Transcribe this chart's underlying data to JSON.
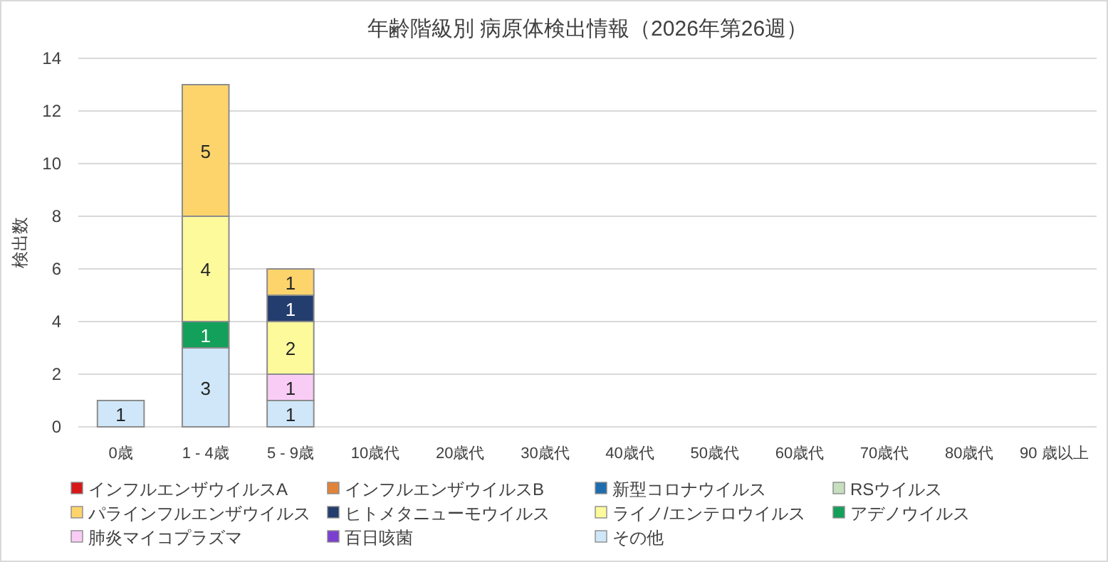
{
  "chart_data": {
    "type": "bar",
    "title": "年齢階級別 病原体検出情報（2026年第26週）",
    "ylabel": "検出数",
    "stacked": true,
    "categories": [
      "0歳",
      "1 - 4歳",
      "5 - 9歳",
      "10歳代",
      "20歳代",
      "30歳代",
      "40歳代",
      "50歳代",
      "60歳代",
      "70歳代",
      "80歳代",
      "90 歳以上"
    ],
    "series": [
      {
        "name": "その他",
        "color": "#cfe7f8",
        "values": [
          1,
          3,
          1,
          0,
          0,
          0,
          0,
          0,
          0,
          0,
          0,
          0
        ],
        "value_labels": [
          "1",
          "3",
          "1",
          null,
          null,
          null,
          null,
          null,
          null,
          null,
          null,
          null
        ]
      },
      {
        "name": "百日咳菌",
        "color": "#7b3fd0",
        "values": [
          0,
          0,
          0,
          0,
          0,
          0,
          0,
          0,
          0,
          0,
          0,
          0
        ],
        "value_labels": [
          null,
          null,
          null,
          null,
          null,
          null,
          null,
          null,
          null,
          null,
          null,
          null
        ]
      },
      {
        "name": "肺炎マイコプラズマ",
        "color": "#f9ccf5",
        "values": [
          0,
          0,
          1,
          0,
          0,
          0,
          0,
          0,
          0,
          0,
          0,
          0
        ],
        "value_labels": [
          null,
          null,
          "1",
          null,
          null,
          null,
          null,
          null,
          null,
          null,
          null,
          null
        ]
      },
      {
        "name": "アデノウイルス",
        "color": "#13a05a",
        "values": [
          0,
          1,
          0,
          0,
          0,
          0,
          0,
          0,
          0,
          0,
          0,
          0
        ],
        "value_labels": [
          null,
          "1",
          null,
          null,
          null,
          null,
          null,
          null,
          null,
          null,
          null,
          null
        ]
      },
      {
        "name": "ライノ/エンテロウイルス",
        "color": "#fdfa9c",
        "values": [
          0,
          4,
          2,
          0,
          0,
          0,
          0,
          0,
          0,
          0,
          0,
          0
        ],
        "value_labels": [
          null,
          "4",
          "2",
          null,
          null,
          null,
          null,
          null,
          null,
          null,
          null,
          null
        ]
      },
      {
        "name": "ヒトメタニューモウイルス",
        "color": "#233d6e",
        "values": [
          0,
          0,
          1,
          0,
          0,
          0,
          0,
          0,
          0,
          0,
          0,
          0
        ],
        "value_labels": [
          null,
          null,
          "1",
          null,
          null,
          null,
          null,
          null,
          null,
          null,
          null,
          null
        ]
      },
      {
        "name": "パラインフルエンザウイルス",
        "color": "#fdd46c",
        "values": [
          0,
          5,
          1,
          0,
          0,
          0,
          0,
          0,
          0,
          0,
          0,
          0
        ],
        "value_labels": [
          null,
          "5",
          "1",
          null,
          null,
          null,
          null,
          null,
          null,
          null,
          null,
          null
        ]
      },
      {
        "name": "RSウイルス",
        "color": "#c6dfc0",
        "values": [
          0,
          0,
          0,
          0,
          0,
          0,
          0,
          0,
          0,
          0,
          0,
          0
        ],
        "value_labels": [
          null,
          null,
          null,
          null,
          null,
          null,
          null,
          null,
          null,
          null,
          null,
          null
        ]
      },
      {
        "name": "新型コロナウイルス",
        "color": "#1f6cae",
        "values": [
          0,
          0,
          0,
          0,
          0,
          0,
          0,
          0,
          0,
          0,
          0,
          0
        ],
        "value_labels": [
          null,
          null,
          null,
          null,
          null,
          null,
          null,
          null,
          null,
          null,
          null,
          null
        ]
      },
      {
        "name": "インフルエンザウイルスB",
        "color": "#e0843c",
        "values": [
          0,
          0,
          0,
          0,
          0,
          0,
          0,
          0,
          0,
          0,
          0,
          0
        ],
        "value_labels": [
          null,
          null,
          null,
          null,
          null,
          null,
          null,
          null,
          null,
          null,
          null,
          null
        ]
      },
      {
        "name": "インフルエンザウイルスA",
        "color": "#d61818",
        "values": [
          0,
          0,
          0,
          0,
          0,
          0,
          0,
          0,
          0,
          0,
          0,
          0
        ],
        "value_labels": [
          null,
          null,
          null,
          null,
          null,
          null,
          null,
          null,
          null,
          null,
          null,
          null
        ]
      }
    ],
    "ylim": [
      0,
      14
    ],
    "yticks": [
      0,
      2,
      4,
      6,
      8,
      10,
      12,
      14
    ],
    "grid": "y",
    "legend": "bottom"
  }
}
